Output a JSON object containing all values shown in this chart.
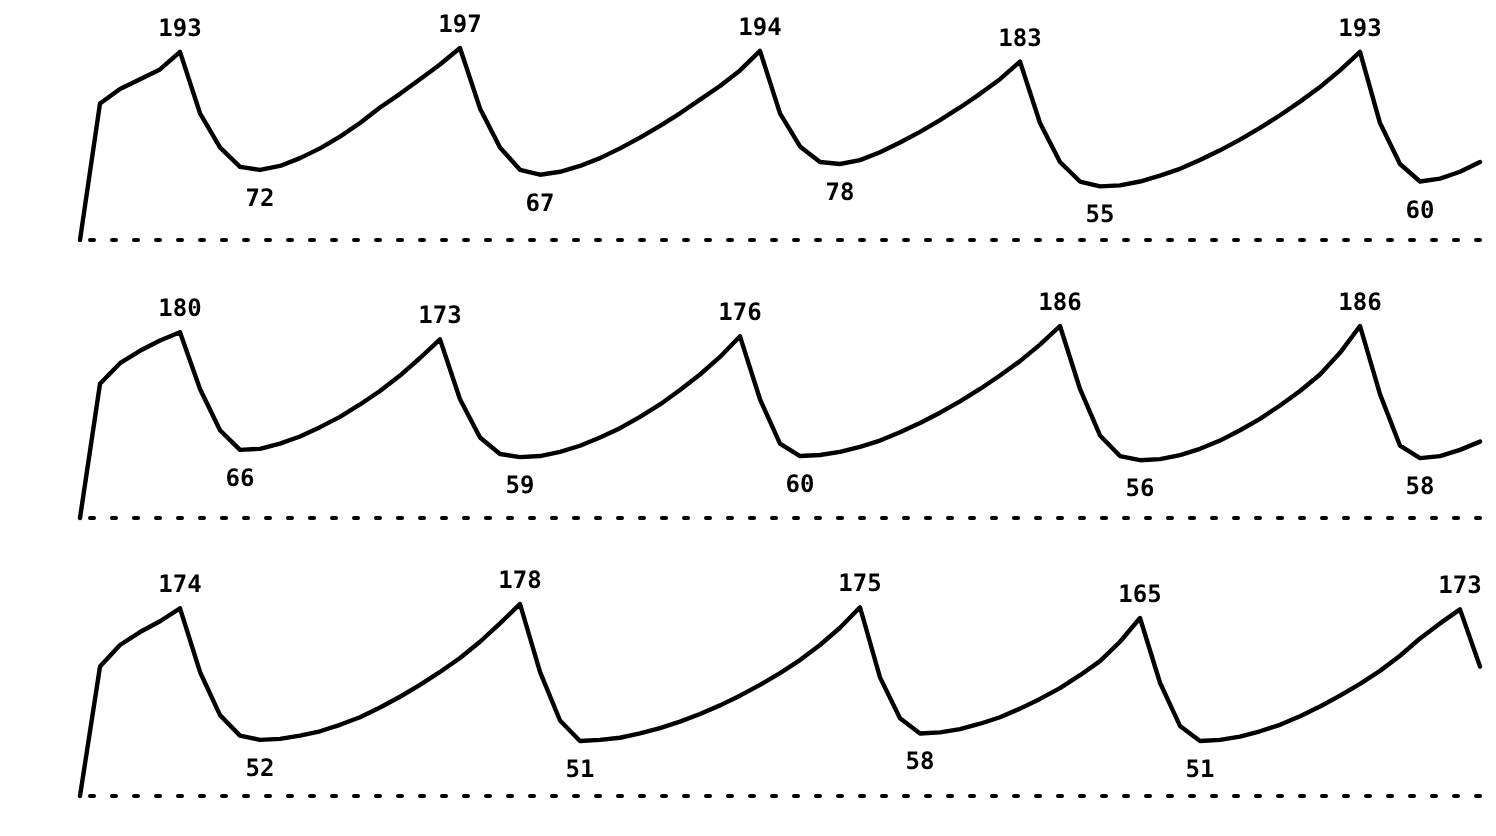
{
  "chart_data": [
    {
      "type": "line",
      "tick_labels": false,
      "categories": [
        null,
        null,
        null,
        null,
        null,
        null,
        null,
        null,
        null,
        null,
        null,
        null,
        null,
        null,
        null,
        null,
        null,
        null,
        null,
        null,
        null,
        null,
        null,
        null,
        null,
        null,
        null,
        null,
        null,
        null,
        null,
        null,
        null,
        null,
        null,
        null,
        null,
        null,
        null,
        null,
        null,
        null,
        null,
        null,
        null,
        null,
        null,
        null,
        null,
        null,
        null,
        null,
        null,
        null,
        null,
        null,
        null,
        null,
        null,
        null,
        null,
        null,
        null,
        null,
        null,
        null,
        null,
        null,
        null,
        null,
        null
      ],
      "series": [
        {
          "color": "#000000",
          "values": [
            0,
            140,
            155,
            165,
            175,
            193,
            130,
            95,
            75,
            72,
            76,
            84,
            94,
            106,
            120,
            136,
            150,
            165,
            180,
            197,
            135,
            95,
            72,
            67,
            70,
            76,
            84,
            94,
            105,
            117,
            130,
            144,
            158,
            174,
            194,
            130,
            96,
            80,
            78,
            82,
            90,
            100,
            111,
            123,
            136,
            150,
            165,
            183,
            120,
            80,
            60,
            55,
            56,
            60,
            66,
            73,
            82,
            92,
            103,
            115,
            128,
            142,
            157,
            174,
            193,
            120,
            78,
            60,
            63,
            70,
            80
          ],
          "value_labels": [
            null,
            null,
            null,
            null,
            null,
            "193",
            null,
            null,
            null,
            "72",
            null,
            null,
            null,
            null,
            null,
            null,
            null,
            null,
            null,
            "197",
            null,
            null,
            null,
            "67",
            null,
            null,
            null,
            null,
            null,
            null,
            null,
            null,
            null,
            null,
            "194",
            null,
            null,
            null,
            "78",
            null,
            null,
            null,
            null,
            null,
            null,
            null,
            null,
            "183",
            null,
            null,
            null,
            "55",
            null,
            null,
            null,
            null,
            null,
            null,
            null,
            null,
            null,
            null,
            null,
            null,
            "193",
            null,
            null,
            "60",
            null,
            null,
            null
          ]
        }
      ],
      "ref_lines": [
        {
          "axis": "y",
          "value": 0,
          "line_style": "dotted"
        }
      ]
    },
    {
      "type": "line",
      "tick_labels": false,
      "categories": [
        null,
        null,
        null,
        null,
        null,
        null,
        null,
        null,
        null,
        null,
        null,
        null,
        null,
        null,
        null,
        null,
        null,
        null,
        null,
        null,
        null,
        null,
        null,
        null,
        null,
        null,
        null,
        null,
        null,
        null,
        null,
        null,
        null,
        null,
        null,
        null,
        null,
        null,
        null,
        null,
        null,
        null,
        null,
        null,
        null,
        null,
        null,
        null,
        null,
        null,
        null,
        null,
        null,
        null,
        null,
        null,
        null,
        null,
        null,
        null,
        null,
        null,
        null,
        null,
        null,
        null,
        null,
        null,
        null,
        null,
        null
      ],
      "series": [
        {
          "color": "#000000",
          "values": [
            0,
            130,
            150,
            162,
            172,
            180,
            125,
            85,
            66,
            67,
            72,
            79,
            88,
            98,
            110,
            123,
            138,
            155,
            173,
            115,
            78,
            62,
            59,
            60,
            64,
            70,
            78,
            87,
            98,
            110,
            124,
            139,
            156,
            176,
            115,
            72,
            60,
            61,
            64,
            69,
            75,
            83,
            92,
            102,
            113,
            125,
            138,
            152,
            168,
            186,
            125,
            80,
            60,
            56,
            57,
            61,
            67,
            75,
            85,
            96,
            109,
            123,
            139,
            160,
            186,
            120,
            70,
            58,
            60,
            66,
            74
          ],
          "value_labels": [
            null,
            null,
            null,
            null,
            null,
            "180",
            null,
            null,
            "66",
            null,
            null,
            null,
            null,
            null,
            null,
            null,
            null,
            null,
            "173",
            null,
            null,
            null,
            "59",
            null,
            null,
            null,
            null,
            null,
            null,
            null,
            null,
            null,
            null,
            "176",
            null,
            null,
            "60",
            null,
            null,
            null,
            null,
            null,
            null,
            null,
            null,
            null,
            null,
            null,
            null,
            "186",
            null,
            null,
            null,
            "56",
            null,
            null,
            null,
            null,
            null,
            null,
            null,
            null,
            null,
            null,
            "186",
            null,
            null,
            "58",
            null,
            null,
            null
          ]
        }
      ],
      "ref_lines": [
        {
          "axis": "y",
          "value": 0,
          "line_style": "dotted"
        }
      ]
    },
    {
      "type": "line",
      "tick_labels": false,
      "categories": [
        null,
        null,
        null,
        null,
        null,
        null,
        null,
        null,
        null,
        null,
        null,
        null,
        null,
        null,
        null,
        null,
        null,
        null,
        null,
        null,
        null,
        null,
        null,
        null,
        null,
        null,
        null,
        null,
        null,
        null,
        null,
        null,
        null,
        null,
        null,
        null,
        null,
        null,
        null,
        null,
        null,
        null,
        null,
        null,
        null,
        null,
        null,
        null,
        null,
        null,
        null,
        null,
        null,
        null,
        null,
        null,
        null,
        null,
        null,
        null,
        null,
        null,
        null,
        null,
        null,
        null,
        null,
        null,
        null,
        null,
        null
      ],
      "series": [
        {
          "color": "#000000",
          "values": [
            0,
            120,
            140,
            152,
            162,
            174,
            115,
            75,
            56,
            52,
            53,
            56,
            60,
            66,
            73,
            82,
            92,
            103,
            115,
            128,
            143,
            160,
            178,
            115,
            70,
            51,
            52,
            54,
            58,
            63,
            69,
            76,
            84,
            93,
            103,
            114,
            126,
            140,
            156,
            175,
            110,
            72,
            58,
            59,
            62,
            67,
            73,
            81,
            90,
            100,
            112,
            125,
            143,
            165,
            105,
            65,
            51,
            52,
            55,
            60,
            66,
            74,
            83,
            93,
            104,
            116,
            130,
            146,
            160,
            173,
            120
          ],
          "value_labels": [
            null,
            null,
            null,
            null,
            null,
            "174",
            null,
            null,
            null,
            "52",
            null,
            null,
            null,
            null,
            null,
            null,
            null,
            null,
            null,
            null,
            null,
            null,
            "178",
            null,
            null,
            "51",
            null,
            null,
            null,
            null,
            null,
            null,
            null,
            null,
            null,
            null,
            null,
            null,
            null,
            "175",
            null,
            null,
            "58",
            null,
            null,
            null,
            null,
            null,
            null,
            null,
            null,
            null,
            null,
            "165",
            null,
            null,
            "51",
            null,
            null,
            null,
            null,
            null,
            null,
            null,
            null,
            null,
            null,
            null,
            null,
            "173",
            null
          ]
        }
      ],
      "ref_lines": [
        {
          "axis": "y",
          "value": 0,
          "line_style": "dotted"
        }
      ]
    }
  ]
}
